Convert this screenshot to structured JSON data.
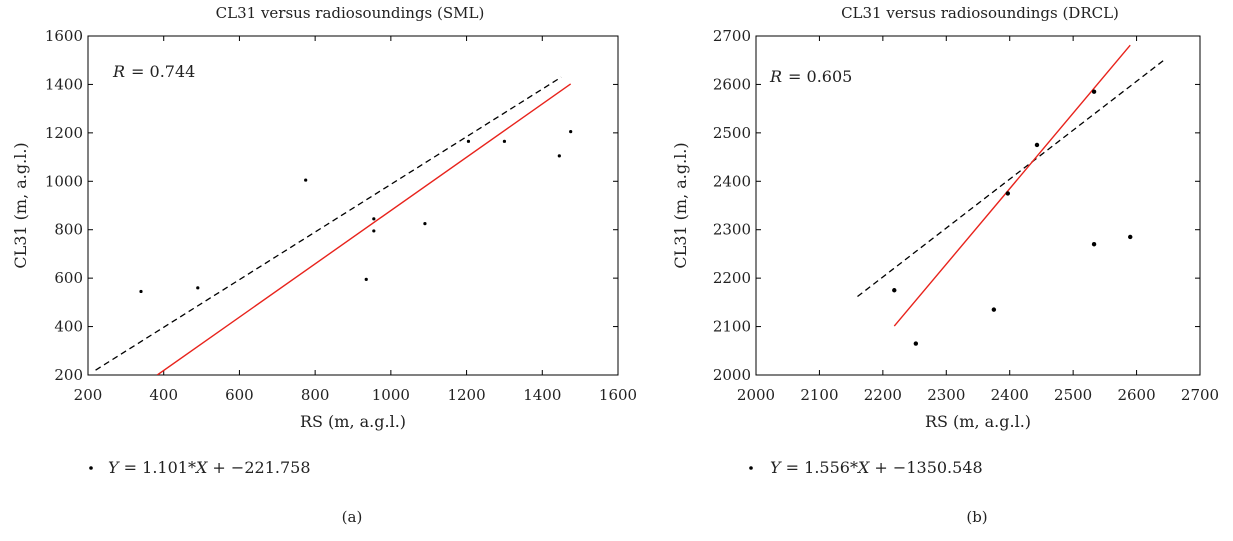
{
  "chart_data": [
    {
      "type": "scatter",
      "title": "CL31 versus radiosoundings (SML)",
      "xlabel": "RS (m, a.g.l.)",
      "ylabel": "CL31 (m, a.g.l.)",
      "xlim": [
        200,
        1600
      ],
      "ylim": [
        200,
        1600
      ],
      "xticks": [
        "200",
        "400",
        "600",
        "800",
        "1000",
        "1200",
        "1400",
        "1600"
      ],
      "yticks": [
        "200",
        "400",
        "600",
        "800",
        "1000",
        "1200",
        "1400",
        "1600"
      ],
      "r_label": "R",
      "r_value": "= 0.744",
      "legend": {
        "label": "Y = 1.101*X + −221.758",
        "var_y": "Y",
        "eq_mid": " = 1.101*",
        "var_x": "X",
        "eq_end": " + −221.758"
      },
      "panel_label": "(a)",
      "points": [
        {
          "x": 340,
          "y": 545
        },
        {
          "x": 490,
          "y": 560
        },
        {
          "x": 775,
          "y": 1005
        },
        {
          "x": 935,
          "y": 595
        },
        {
          "x": 955,
          "y": 795
        },
        {
          "x": 955,
          "y": 845
        },
        {
          "x": 1090,
          "y": 825
        },
        {
          "x": 1205,
          "y": 1165
        },
        {
          "x": 1300,
          "y": 1165
        },
        {
          "x": 1445,
          "y": 1105
        },
        {
          "x": 1475,
          "y": 1205
        }
      ],
      "reference_line": {
        "x": [
          220,
          1450
        ],
        "y": [
          220,
          1430
        ],
        "style": "dashed",
        "color": "#000000"
      },
      "fit_line": {
        "x": [
          383,
          1475
        ],
        "y": [
          200,
          1402
        ],
        "color": "#e8231c"
      },
      "grid": false
    },
    {
      "type": "scatter",
      "title": "CL31 versus radiosoundings (DRCL)",
      "xlabel": "RS (m, a.g.l.)",
      "ylabel": "CL31 (m, a.g.l.)",
      "xlim": [
        2000,
        2700
      ],
      "ylim": [
        2000,
        2700
      ],
      "xticks": [
        "2000",
        "2100",
        "2200",
        "2300",
        "2400",
        "2500",
        "2600",
        "2700"
      ],
      "yticks": [
        "2000",
        "2100",
        "2200",
        "2300",
        "2400",
        "2500",
        "2600",
        "2700"
      ],
      "r_label": "R",
      "r_value": "= 0.605",
      "legend": {
        "label": "Y = 1.556*X + −1350.548",
        "var_y": "Y",
        "eq_mid": " = 1.556*",
        "var_x": "X",
        "eq_end": " + −1350.548"
      },
      "panel_label": "(b)",
      "points": [
        {
          "x": 2218,
          "y": 2175
        },
        {
          "x": 2252,
          "y": 2065
        },
        {
          "x": 2375,
          "y": 2135
        },
        {
          "x": 2397,
          "y": 2375
        },
        {
          "x": 2443,
          "y": 2475
        },
        {
          "x": 2533,
          "y": 2585
        },
        {
          "x": 2533,
          "y": 2270
        },
        {
          "x": 2590,
          "y": 2285
        }
      ],
      "reference_line": {
        "x": [
          2160,
          2645
        ],
        "y": [
          2162,
          2652
        ],
        "style": "dashed",
        "color": "#000000"
      },
      "fit_line": {
        "x": [
          2218,
          2590
        ],
        "y": [
          2101,
          2681
        ],
        "color": "#e8231c"
      },
      "grid": false
    }
  ]
}
